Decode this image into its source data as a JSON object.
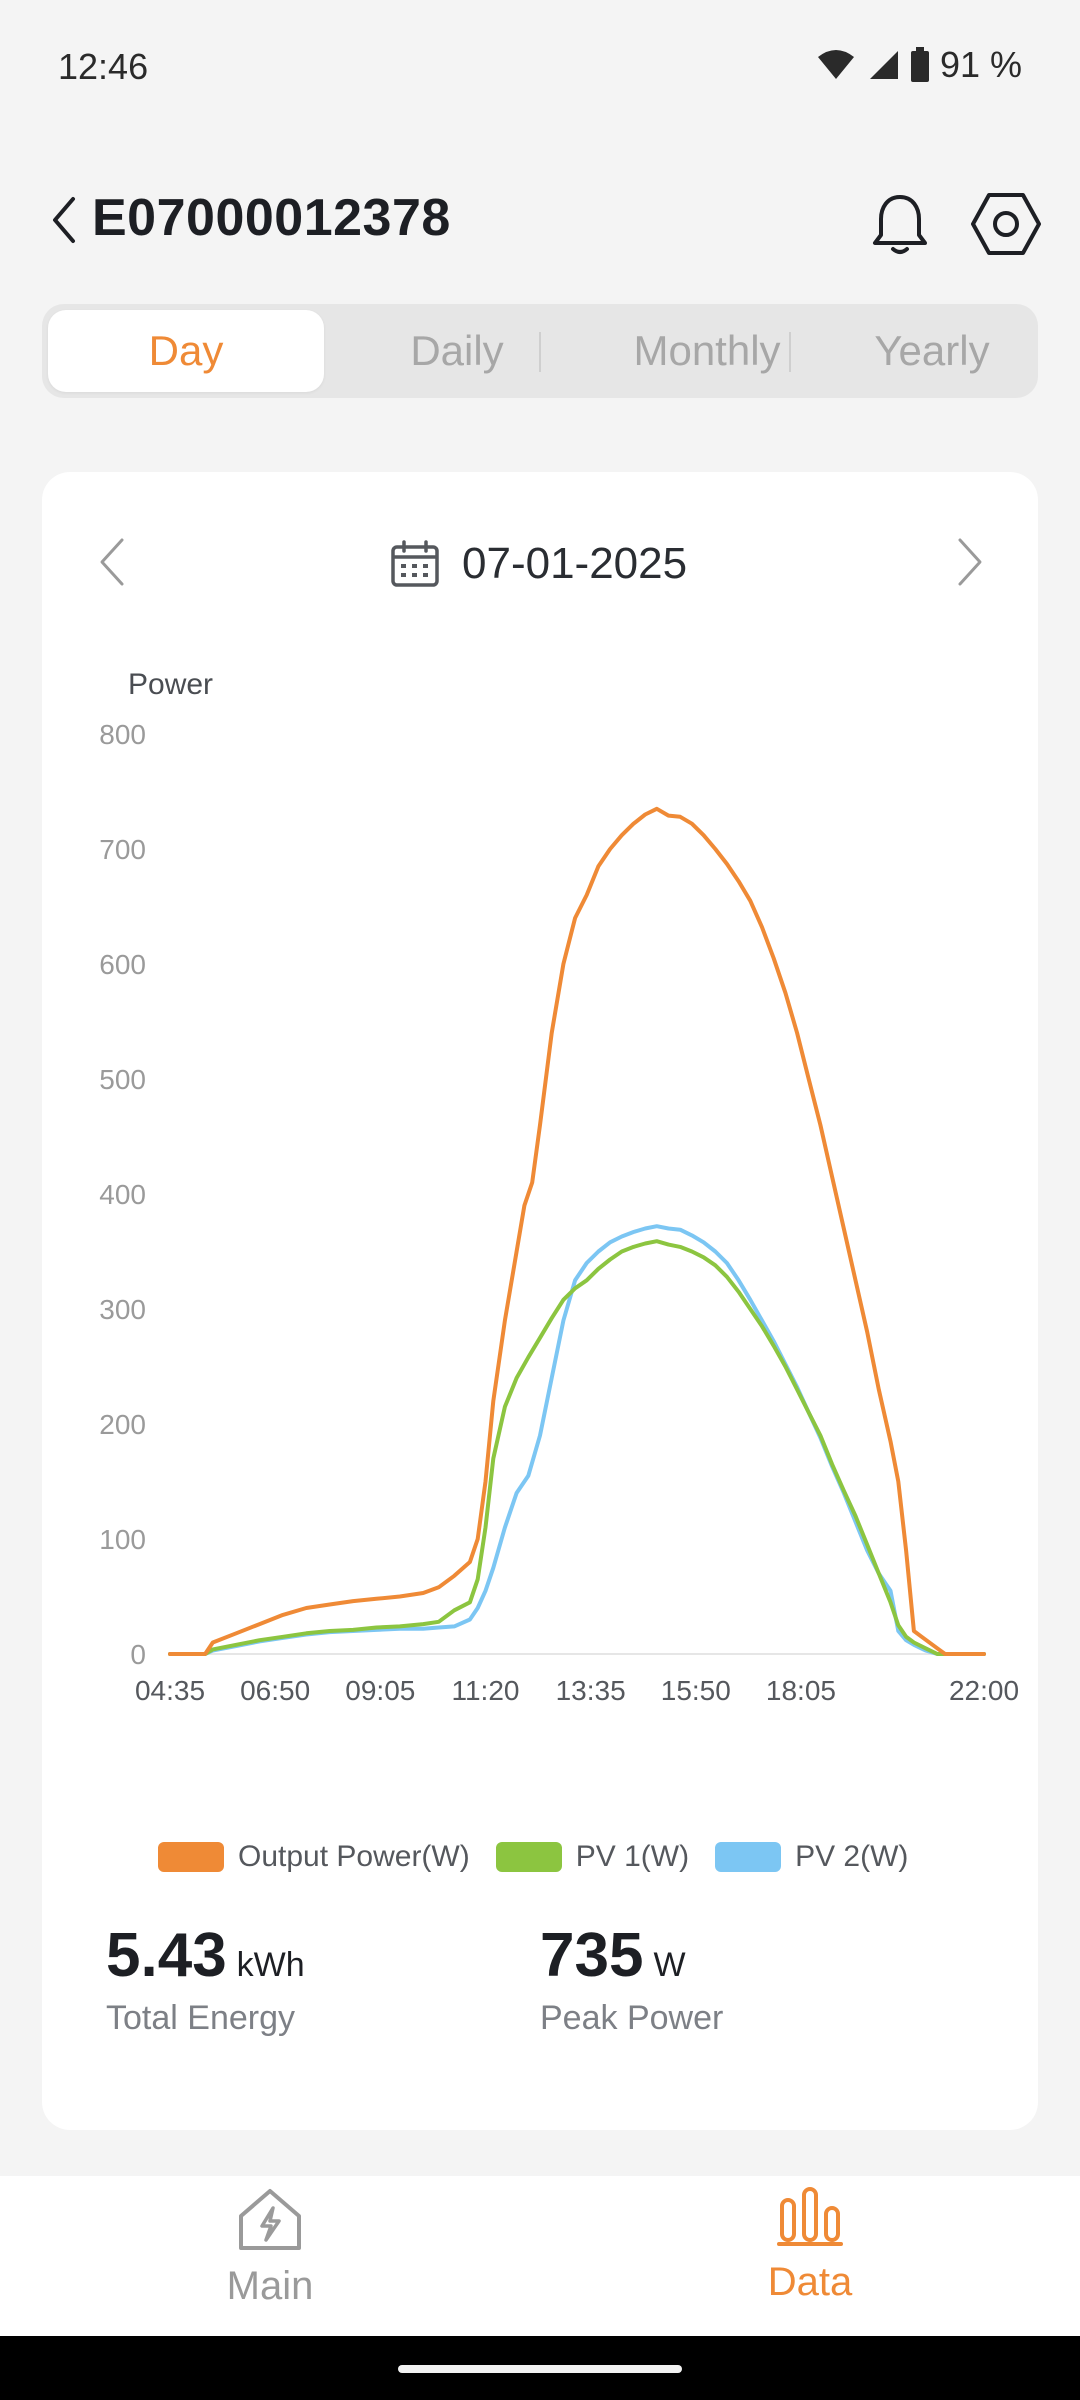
{
  "status_bar": {
    "time": "12:46",
    "battery": "91 %"
  },
  "header": {
    "title": "E07000012378"
  },
  "tabs": [
    {
      "label": "Day",
      "active": true
    },
    {
      "label": "Daily",
      "active": false
    },
    {
      "label": "Monthly",
      "active": false
    },
    {
      "label": "Yearly",
      "active": false
    }
  ],
  "date_nav": {
    "date": "07-01-2025"
  },
  "colors": {
    "accent": "#ef8a36",
    "output": "#ef8a36",
    "pv1": "#8cc540",
    "pv2": "#7cc6f3"
  },
  "chart_data": {
    "type": "line",
    "ylabel": "Power",
    "ylim": [
      0,
      800
    ],
    "yticks": [
      0,
      100,
      200,
      300,
      400,
      500,
      600,
      700,
      800
    ],
    "xticks": [
      "04:35",
      "06:50",
      "09:05",
      "11:20",
      "13:35",
      "15:50",
      "18:05",
      "22:00"
    ],
    "x_range": [
      "04:35",
      "22:00"
    ],
    "grid": false,
    "legend": "bottom",
    "series": [
      {
        "name": "Output Power(W)",
        "color": "#ef8a36",
        "points": [
          [
            "04:35",
            0
          ],
          [
            "05:20",
            0
          ],
          [
            "05:30",
            10
          ],
          [
            "06:00",
            18
          ],
          [
            "06:30",
            26
          ],
          [
            "07:00",
            34
          ],
          [
            "07:30",
            40
          ],
          [
            "08:00",
            43
          ],
          [
            "08:30",
            46
          ],
          [
            "09:00",
            48
          ],
          [
            "09:30",
            50
          ],
          [
            "10:00",
            53
          ],
          [
            "10:20",
            58
          ],
          [
            "10:40",
            68
          ],
          [
            "11:00",
            80
          ],
          [
            "11:10",
            100
          ],
          [
            "11:20",
            150
          ],
          [
            "11:30",
            220
          ],
          [
            "11:45",
            290
          ],
          [
            "12:00",
            350
          ],
          [
            "12:10",
            390
          ],
          [
            "12:20",
            410
          ],
          [
            "12:30",
            460
          ],
          [
            "12:45",
            540
          ],
          [
            "13:00",
            600
          ],
          [
            "13:15",
            640
          ],
          [
            "13:30",
            660
          ],
          [
            "13:45",
            685
          ],
          [
            "14:00",
            700
          ],
          [
            "14:15",
            712
          ],
          [
            "14:30",
            722
          ],
          [
            "14:45",
            730
          ],
          [
            "15:00",
            735
          ],
          [
            "15:15",
            729
          ],
          [
            "15:30",
            728
          ],
          [
            "15:45",
            722
          ],
          [
            "16:00",
            712
          ],
          [
            "16:15",
            700
          ],
          [
            "16:30",
            687
          ],
          [
            "16:45",
            672
          ],
          [
            "17:00",
            655
          ],
          [
            "17:15",
            632
          ],
          [
            "17:30",
            605
          ],
          [
            "17:45",
            575
          ],
          [
            "18:00",
            540
          ],
          [
            "18:15",
            500
          ],
          [
            "18:30",
            460
          ],
          [
            "18:45",
            415
          ],
          [
            "19:00",
            370
          ],
          [
            "19:15",
            325
          ],
          [
            "19:30",
            280
          ],
          [
            "19:45",
            230
          ],
          [
            "20:00",
            185
          ],
          [
            "20:10",
            150
          ],
          [
            "20:20",
            90
          ],
          [
            "20:30",
            20
          ],
          [
            "20:40",
            15
          ],
          [
            "21:00",
            5
          ],
          [
            "21:10",
            0
          ],
          [
            "22:00",
            0
          ]
        ]
      },
      {
        "name": "PV 1(W)",
        "color": "#8cc540",
        "points": [
          [
            "04:35",
            0
          ],
          [
            "05:20",
            0
          ],
          [
            "05:30",
            4
          ],
          [
            "06:00",
            8
          ],
          [
            "06:30",
            12
          ],
          [
            "07:00",
            15
          ],
          [
            "07:30",
            18
          ],
          [
            "08:00",
            20
          ],
          [
            "08:30",
            21
          ],
          [
            "09:00",
            23
          ],
          [
            "09:30",
            24
          ],
          [
            "10:00",
            26
          ],
          [
            "10:20",
            28
          ],
          [
            "10:40",
            38
          ],
          [
            "11:00",
            45
          ],
          [
            "11:10",
            65
          ],
          [
            "11:20",
            110
          ],
          [
            "11:30",
            170
          ],
          [
            "11:45",
            215
          ],
          [
            "12:00",
            240
          ],
          [
            "12:15",
            258
          ],
          [
            "12:30",
            275
          ],
          [
            "12:45",
            292
          ],
          [
            "13:00",
            308
          ],
          [
            "13:15",
            318
          ],
          [
            "13:30",
            325
          ],
          [
            "13:45",
            335
          ],
          [
            "14:00",
            343
          ],
          [
            "14:15",
            350
          ],
          [
            "14:30",
            354
          ],
          [
            "14:45",
            357
          ],
          [
            "15:00",
            359
          ],
          [
            "15:15",
            356
          ],
          [
            "15:30",
            354
          ],
          [
            "15:45",
            350
          ],
          [
            "16:00",
            345
          ],
          [
            "16:15",
            338
          ],
          [
            "16:30",
            328
          ],
          [
            "16:45",
            315
          ],
          [
            "17:00",
            300
          ],
          [
            "17:15",
            285
          ],
          [
            "17:30",
            268
          ],
          [
            "17:45",
            250
          ],
          [
            "18:00",
            230
          ],
          [
            "18:15",
            210
          ],
          [
            "18:30",
            190
          ],
          [
            "18:45",
            165
          ],
          [
            "19:00",
            142
          ],
          [
            "19:15",
            120
          ],
          [
            "19:30",
            95
          ],
          [
            "19:45",
            70
          ],
          [
            "20:00",
            45
          ],
          [
            "20:10",
            25
          ],
          [
            "20:20",
            15
          ],
          [
            "20:30",
            10
          ],
          [
            "20:45",
            5
          ],
          [
            "21:00",
            0
          ],
          [
            "22:00",
            0
          ]
        ]
      },
      {
        "name": "PV 2(W)",
        "color": "#7cc6f3",
        "points": [
          [
            "04:35",
            0
          ],
          [
            "05:20",
            0
          ],
          [
            "05:30",
            3
          ],
          [
            "06:00",
            7
          ],
          [
            "06:30",
            11
          ],
          [
            "07:00",
            14
          ],
          [
            "07:30",
            17
          ],
          [
            "08:00",
            19
          ],
          [
            "08:30",
            20
          ],
          [
            "09:00",
            21
          ],
          [
            "09:30",
            22
          ],
          [
            "10:00",
            22
          ],
          [
            "10:20",
            23
          ],
          [
            "10:40",
            24
          ],
          [
            "11:00",
            30
          ],
          [
            "11:10",
            40
          ],
          [
            "11:20",
            55
          ],
          [
            "11:30",
            75
          ],
          [
            "11:45",
            110
          ],
          [
            "12:00",
            140
          ],
          [
            "12:15",
            155
          ],
          [
            "12:30",
            190
          ],
          [
            "12:45",
            240
          ],
          [
            "13:00",
            290
          ],
          [
            "13:15",
            325
          ],
          [
            "13:30",
            340
          ],
          [
            "13:45",
            350
          ],
          [
            "14:00",
            358
          ],
          [
            "14:15",
            363
          ],
          [
            "14:30",
            367
          ],
          [
            "14:45",
            370
          ],
          [
            "15:00",
            372
          ],
          [
            "15:15",
            370
          ],
          [
            "15:30",
            369
          ],
          [
            "15:45",
            364
          ],
          [
            "16:00",
            358
          ],
          [
            "16:15",
            350
          ],
          [
            "16:30",
            340
          ],
          [
            "16:45",
            325
          ],
          [
            "17:00",
            308
          ],
          [
            "17:15",
            290
          ],
          [
            "17:30",
            272
          ],
          [
            "17:45",
            252
          ],
          [
            "18:00",
            232
          ],
          [
            "18:15",
            210
          ],
          [
            "18:30",
            188
          ],
          [
            "18:45",
            163
          ],
          [
            "19:00",
            140
          ],
          [
            "19:15",
            115
          ],
          [
            "19:30",
            90
          ],
          [
            "19:45",
            70
          ],
          [
            "20:00",
            55
          ],
          [
            "20:10",
            20
          ],
          [
            "20:20",
            12
          ],
          [
            "20:30",
            8
          ],
          [
            "20:45",
            3
          ],
          [
            "21:00",
            0
          ],
          [
            "22:00",
            0
          ]
        ]
      }
    ]
  },
  "legend": [
    {
      "label": "Output Power(W)",
      "color": "#ef8a36"
    },
    {
      "label": "PV 1(W)",
      "color": "#8cc540"
    },
    {
      "label": "PV 2(W)",
      "color": "#7cc6f3"
    }
  ],
  "stats": {
    "total_energy": {
      "value": "5.43",
      "unit": "kWh",
      "label": "Total Energy"
    },
    "peak_power": {
      "value": "735",
      "unit": "W",
      "label": "Peak Power"
    }
  },
  "bottom_nav": [
    {
      "label": "Main",
      "icon": "house-bolt-icon",
      "active": false
    },
    {
      "label": "Data",
      "icon": "bar-chart-icon",
      "active": true
    }
  ]
}
